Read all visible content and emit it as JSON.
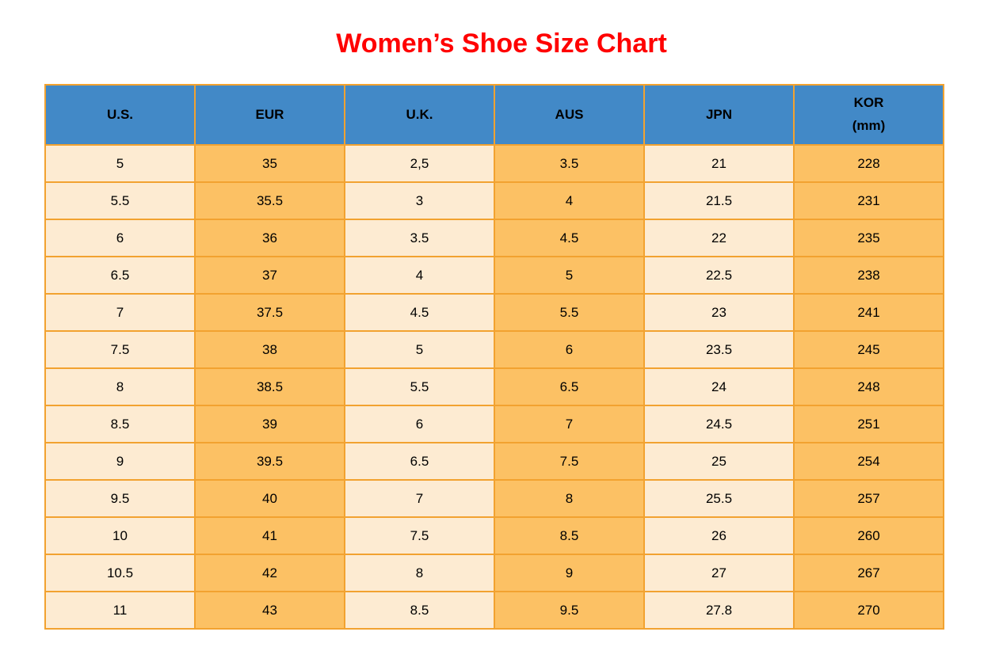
{
  "title": "Women’s Shoe Size Chart",
  "colors": {
    "title_red": "#FF0000",
    "header_blue": "#4289C7",
    "border_orange": "#F2A230",
    "cell_cream": "#FDEBD2",
    "cell_orange": "#FCC164",
    "text": "#000000",
    "background": "#FFFFFF"
  },
  "chart_data": {
    "type": "table",
    "title": "Women’s Shoe Size Chart",
    "columns": [
      "U.S.",
      "EUR",
      "U.K.",
      "AUS",
      "JPN",
      "KOR\n(mm)"
    ],
    "column_ids": [
      "us",
      "eur",
      "uk",
      "aus",
      "jpn",
      "kor-mm"
    ],
    "rows": [
      [
        "5",
        "35",
        "2,5",
        "3.5",
        "21",
        "228"
      ],
      [
        "5.5",
        "35.5",
        "3",
        "4",
        "21.5",
        "231"
      ],
      [
        "6",
        "36",
        "3.5",
        "4.5",
        "22",
        "235"
      ],
      [
        "6.5",
        "37",
        "4",
        "5",
        "22.5",
        "238"
      ],
      [
        "7",
        "37.5",
        "4.5",
        "5.5",
        "23",
        "241"
      ],
      [
        "7.5",
        "38",
        "5",
        "6",
        "23.5",
        "245"
      ],
      [
        "8",
        "38.5",
        "5.5",
        "6.5",
        "24",
        "248"
      ],
      [
        "8.5",
        "39",
        "6",
        "7",
        "24.5",
        "251"
      ],
      [
        "9",
        "39.5",
        "6.5",
        "7.5",
        "25",
        "254"
      ],
      [
        "9.5",
        "40",
        "7",
        "8",
        "25.5",
        "257"
      ],
      [
        "10",
        "41",
        "7.5",
        "8.5",
        "26",
        "260"
      ],
      [
        "10.5",
        "42",
        "8",
        "9",
        "27",
        "267"
      ],
      [
        "11",
        "43",
        "8.5",
        "9.5",
        "27.8",
        "270"
      ]
    ]
  }
}
